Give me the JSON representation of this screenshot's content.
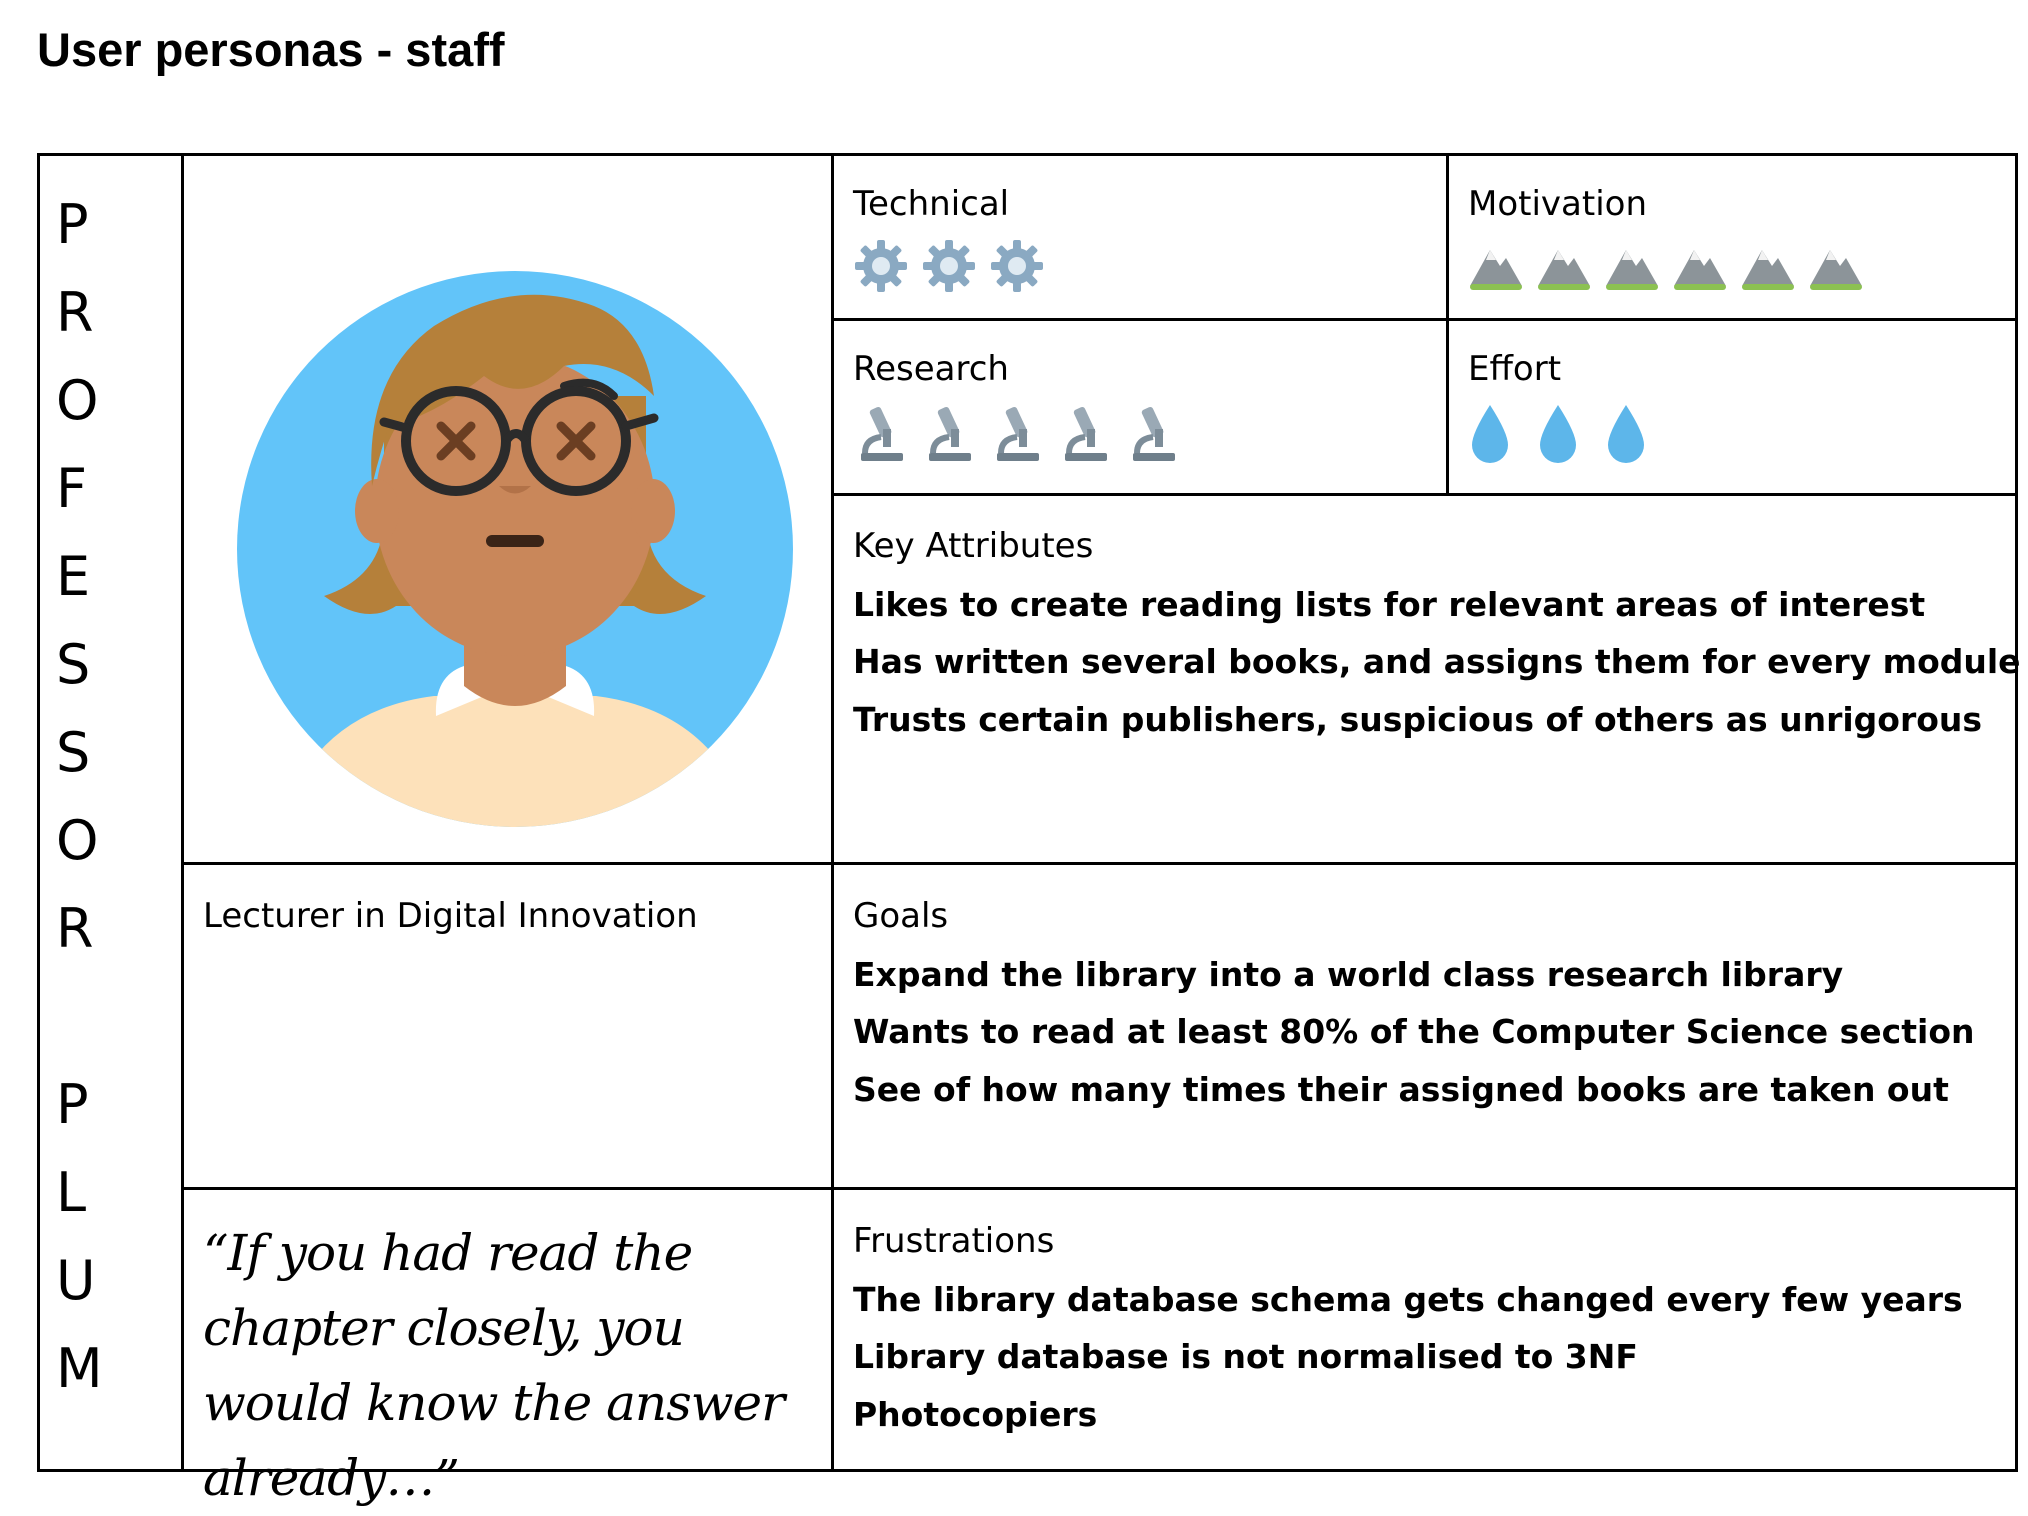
{
  "page_title": "User personas - staff",
  "persona": {
    "name_letters": [
      "P",
      "R",
      "O",
      "F",
      "E",
      "S",
      "S",
      "O",
      "R",
      "",
      "P",
      "L",
      "U",
      "M"
    ],
    "role": "Lecturer in Digital Innovation",
    "quote": "“If you had read the chapter closely, you would know the answer already…”",
    "colors": {
      "avatar_bg": "#62c4f9",
      "hair": "#b5803a",
      "skin": "#c9875a",
      "shirt": "#fde1ba"
    }
  },
  "ratings": {
    "technical": {
      "label": "Technical",
      "count": 3,
      "icon": "gear-icon"
    },
    "motivation": {
      "label": "Motivation",
      "count": 6,
      "icon": "mountain-icon"
    },
    "research": {
      "label": "Research",
      "count": 5,
      "icon": "microscope-icon"
    },
    "effort": {
      "label": "Effort",
      "count": 3,
      "icon": "droplet-icon"
    }
  },
  "key_attributes": {
    "label": "Key Attributes",
    "items": [
      "Likes to create reading lists for relevant areas of interest",
      "Has written several books, and assigns them for every module",
      "Trusts certain publishers, suspicious of others as unrigorous"
    ]
  },
  "goals": {
    "label": "Goals",
    "items": [
      "Expand the library into a world class research library",
      "Wants to read at least 80% of the Computer Science section",
      "See of how many times their assigned books are taken out"
    ]
  },
  "frustrations": {
    "label": "Frustrations",
    "items": [
      "The library database schema gets changed every few years",
      "Library database is not normalised to 3NF",
      "Photocopiers"
    ]
  }
}
